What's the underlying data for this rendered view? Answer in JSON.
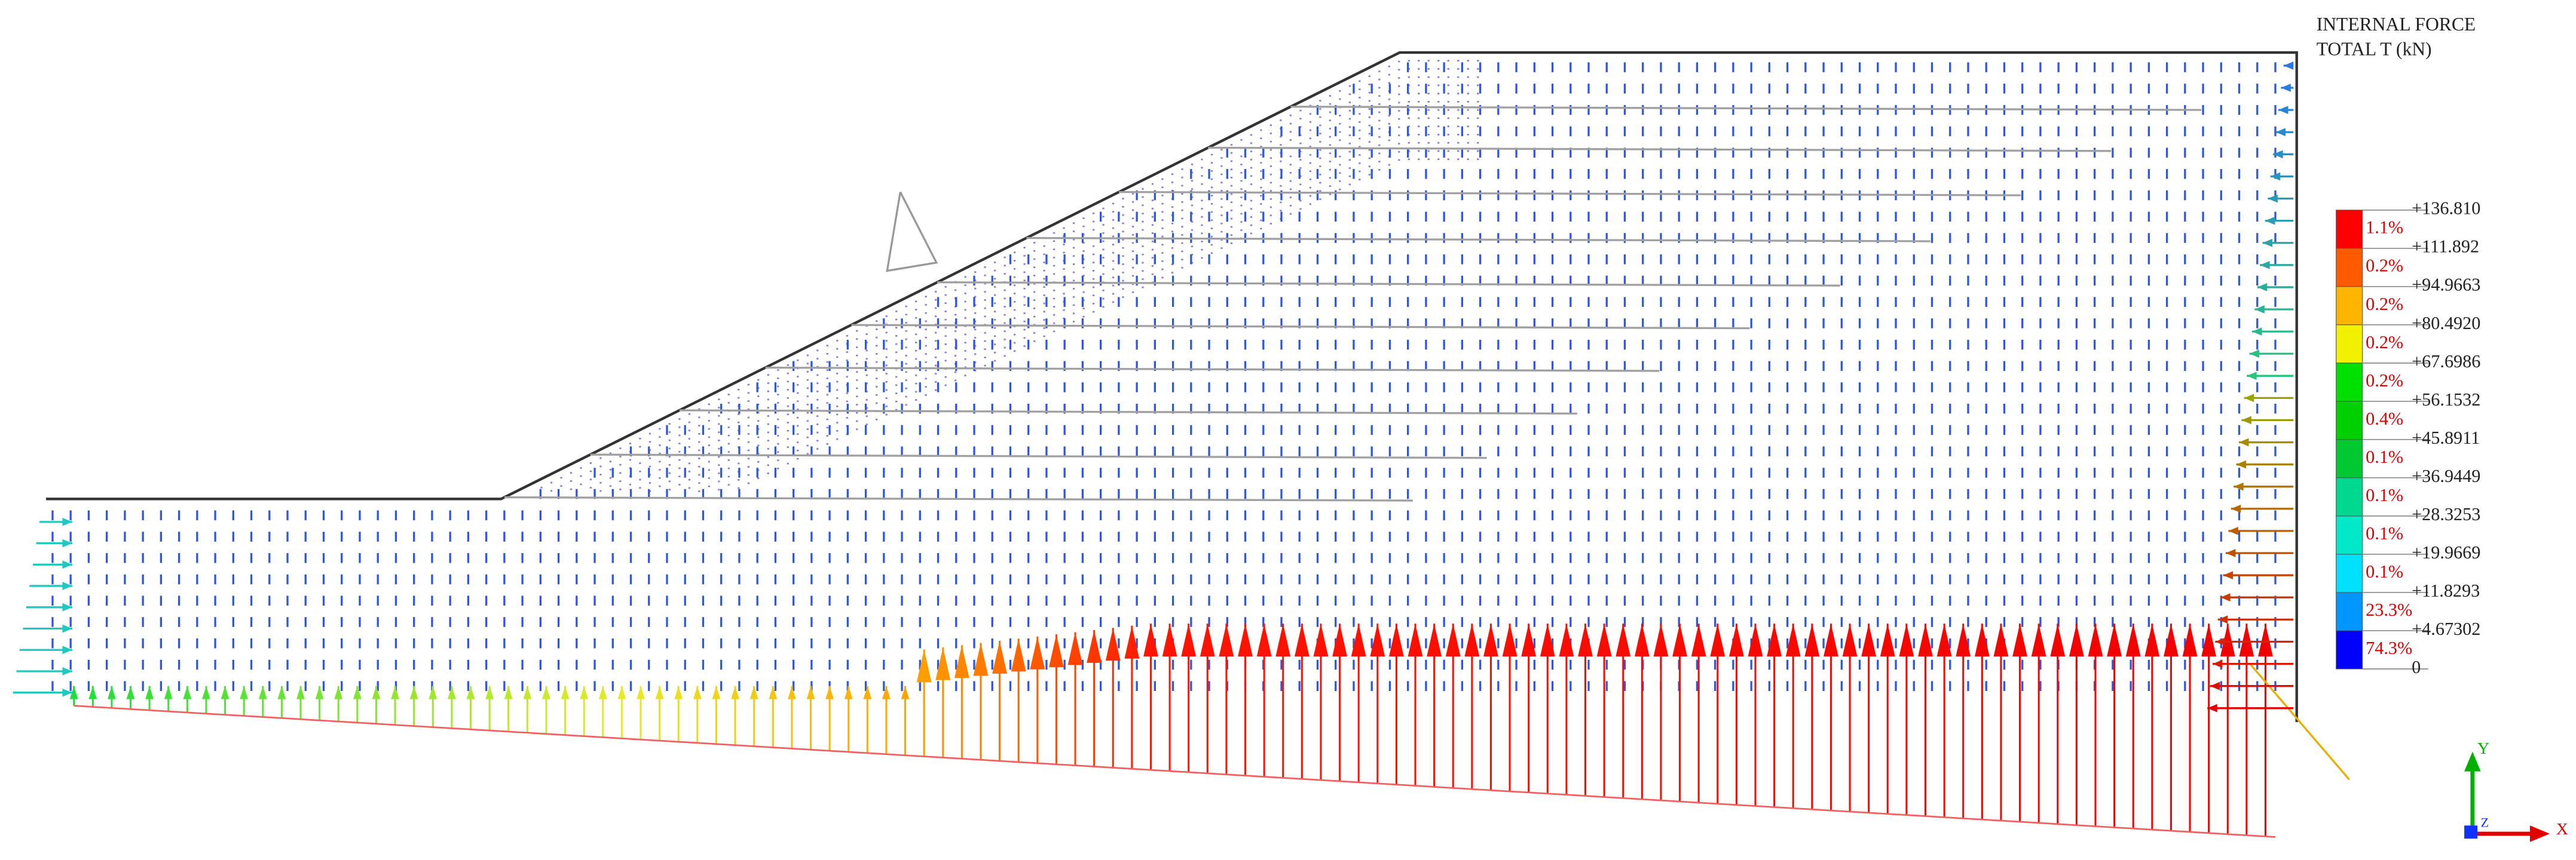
{
  "legend": {
    "title": [
      "INTERNAL FORCE",
      "TOTAL T (kN)"
    ],
    "levels": [
      "+136.810",
      "+111.892",
      "+94.9663",
      "+80.4920",
      "+67.6986",
      "+56.1532",
      "+45.8911",
      "+36.9449",
      "+28.3253",
      "+19.9669",
      "+11.8293",
      "+4.67302",
      "0"
    ],
    "bands": [
      {
        "percent": "1.1%",
        "color": "#ff0000"
      },
      {
        "percent": "0.2%",
        "color": "#ff5a00"
      },
      {
        "percent": "0.2%",
        "color": "#ffb400"
      },
      {
        "percent": "0.2%",
        "color": "#f0f000"
      },
      {
        "percent": "0.2%",
        "color": "#00e000"
      },
      {
        "percent": "0.4%",
        "color": "#00d000"
      },
      {
        "percent": "0.1%",
        "color": "#00c830"
      },
      {
        "percent": "0.1%",
        "color": "#00d890"
      },
      {
        "percent": "0.1%",
        "color": "#00e8c8"
      },
      {
        "percent": "0.1%",
        "color": "#00e0ff"
      },
      {
        "percent": "23.3%",
        "color": "#0096ff"
      },
      {
        "percent": "74.3%",
        "color": "#0000ff"
      }
    ]
  },
  "axes": {
    "x": "X",
    "y": "Y",
    "z": "Z"
  }
}
